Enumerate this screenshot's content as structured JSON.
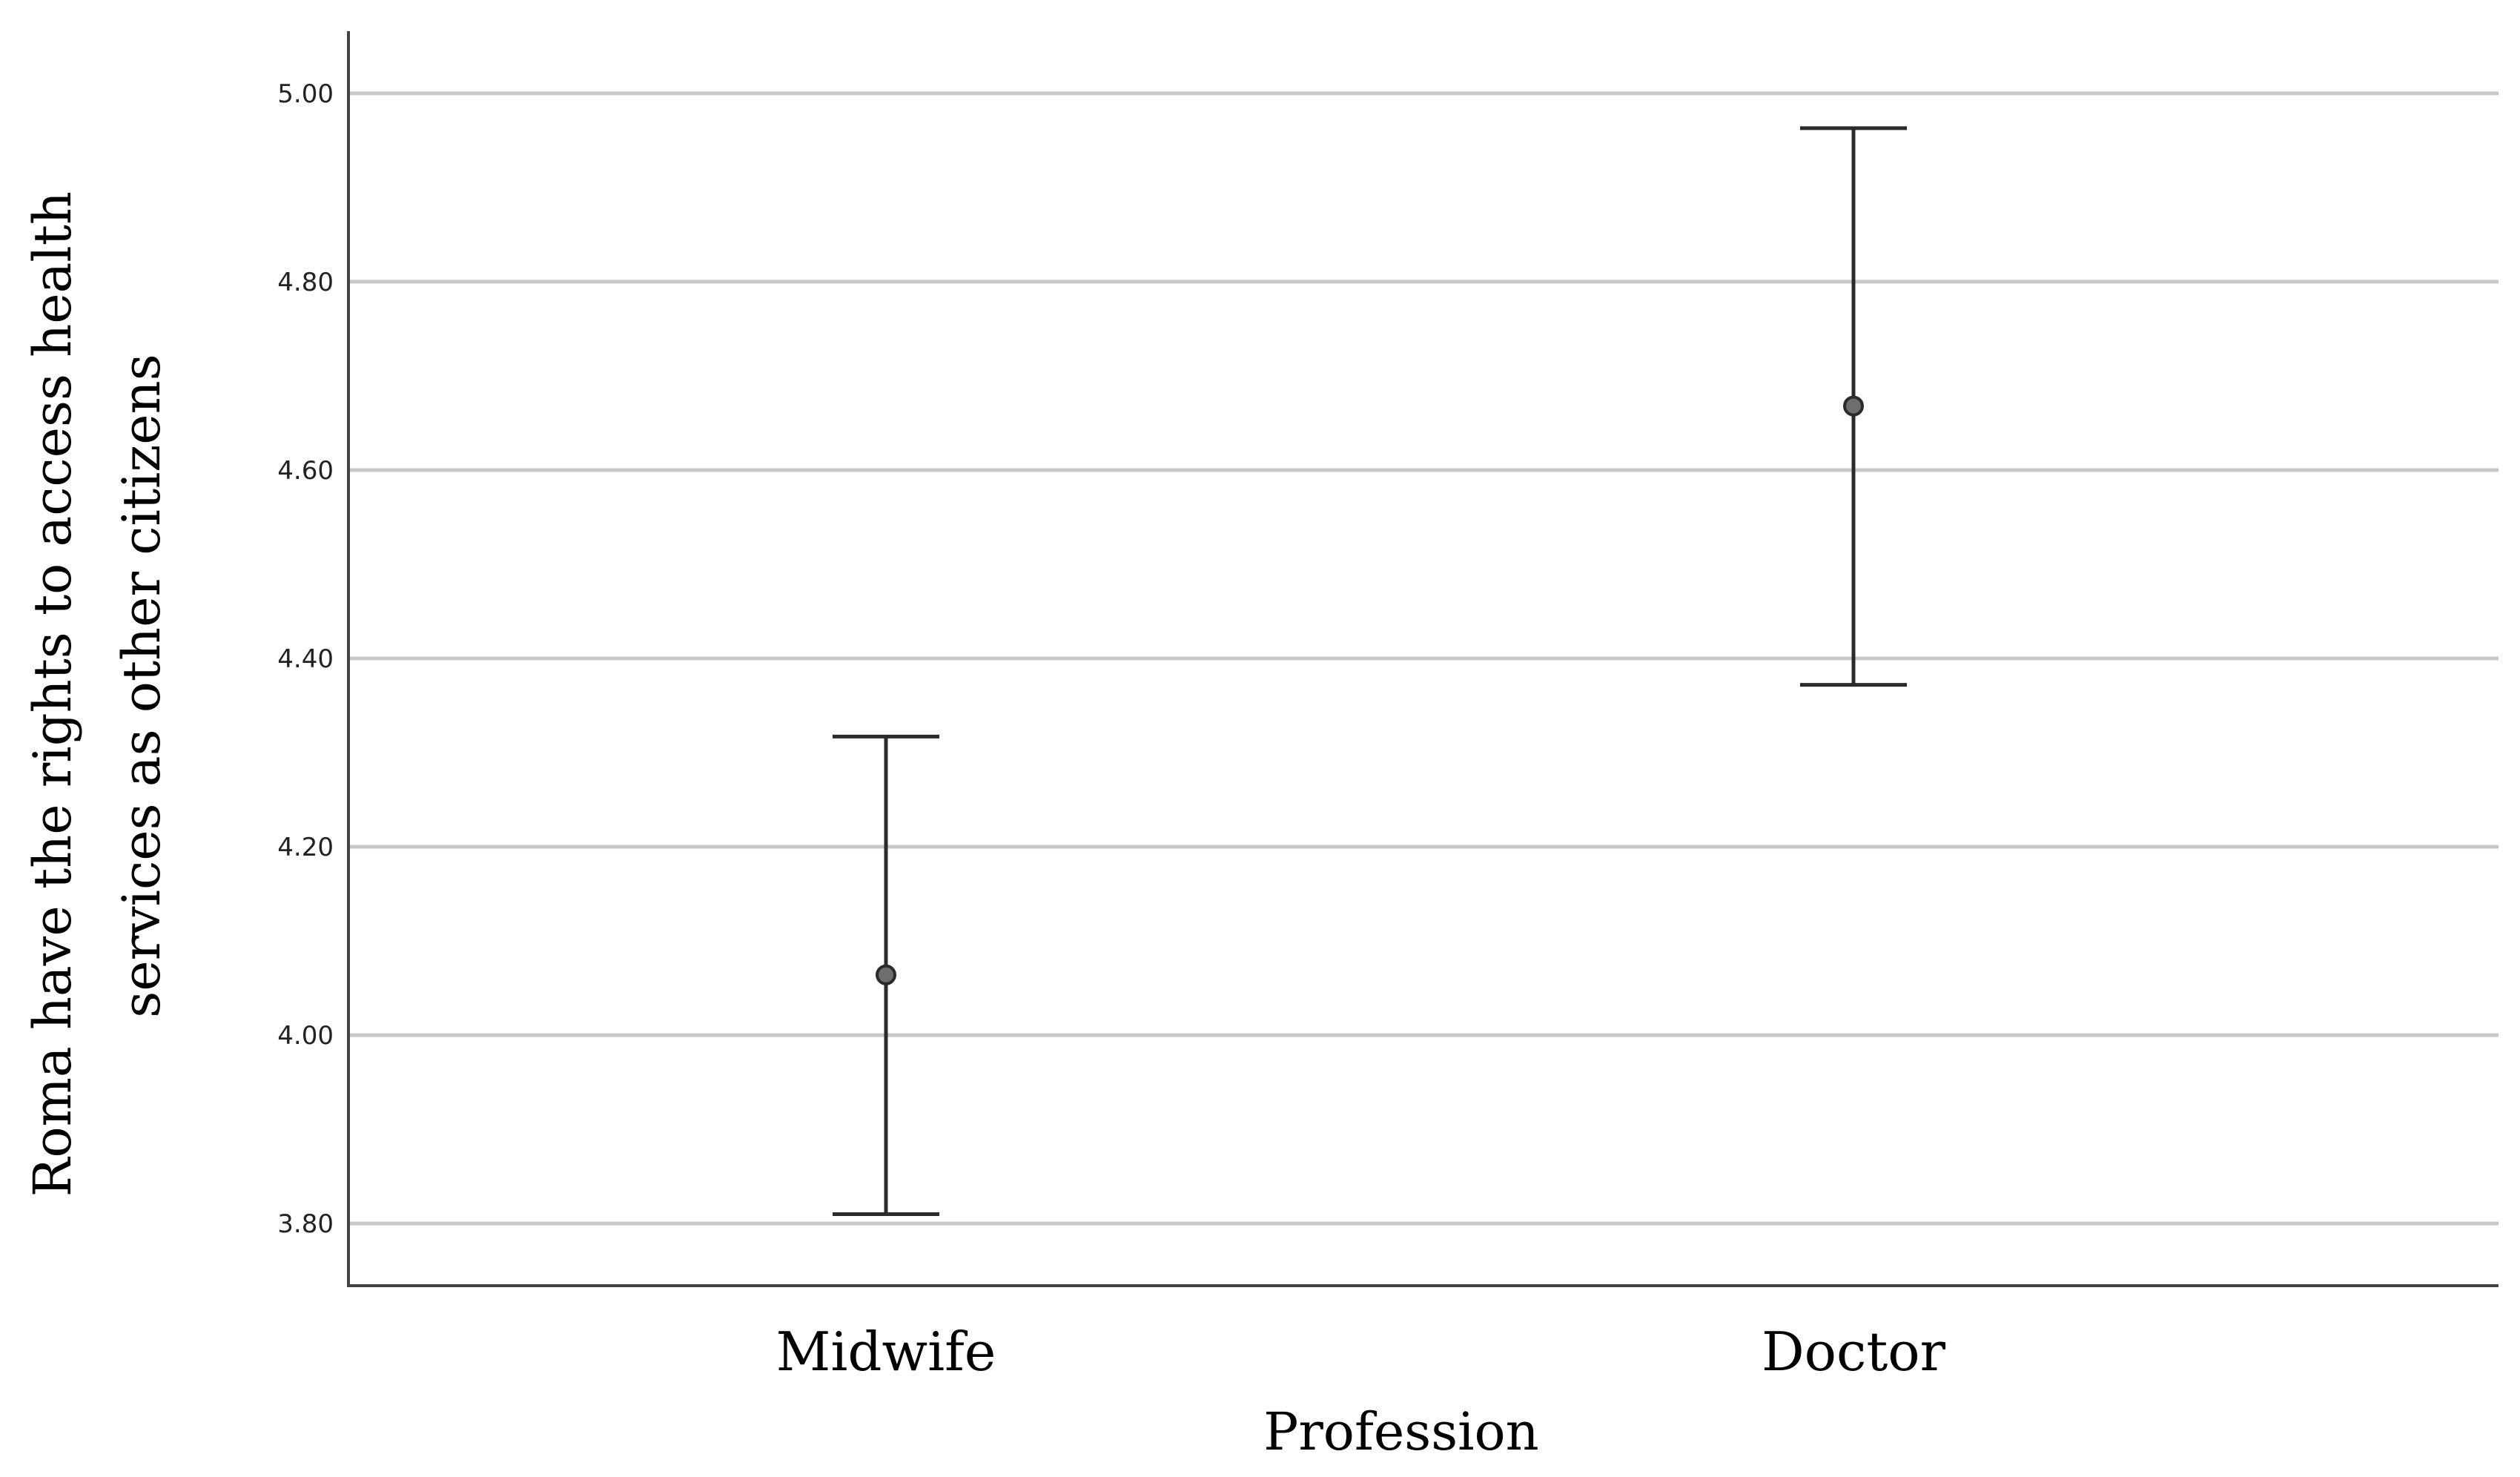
{
  "chart_data": {
    "type": "errorbar",
    "categories": [
      "Midwife",
      "Doctor"
    ],
    "series": [
      {
        "means": [
          4.064,
          4.668
        ],
        "lower": [
          3.81,
          4.372
        ],
        "upper": [
          4.317,
          4.963
        ]
      }
    ],
    "xlabel": "Profession",
    "ylabel_lines": [
      "Roma have the rights to access health",
      "services as other citizens"
    ],
    "yticks": [
      "3.80",
      "4.00",
      "4.20",
      "4.40",
      "4.60",
      "4.80",
      "5.00"
    ],
    "ytick_values": [
      3.8,
      4.0,
      4.2,
      4.4,
      4.6,
      4.8,
      5.0
    ],
    "ylim": [
      3.734,
      5.066
    ],
    "grid": true,
    "colors": {
      "grid": "#c8c8c8",
      "axis": "#444444",
      "errorbar": "#2b2b2b",
      "point_fill": "#6e6e6e"
    }
  }
}
